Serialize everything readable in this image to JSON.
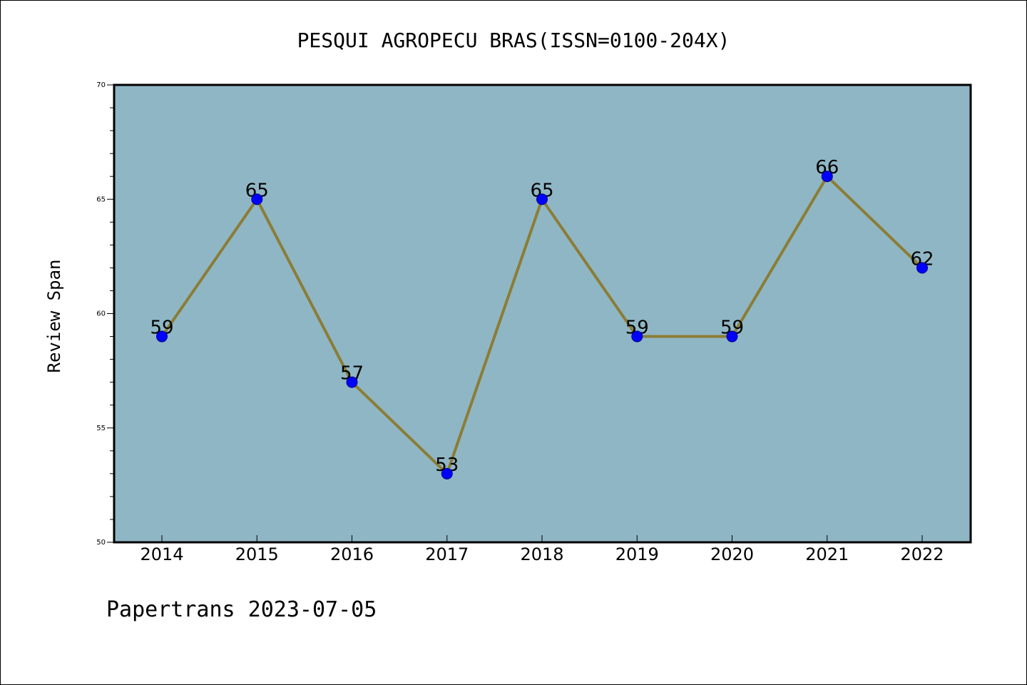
{
  "chart_data": {
    "type": "line",
    "title": "PESQUI AGROPECU BRAS(ISSN=0100-204X)",
    "xlabel": "",
    "ylabel": "Review Span",
    "categories": [
      "2014",
      "2015",
      "2016",
      "2017",
      "2018",
      "2019",
      "2020",
      "2021",
      "2022"
    ],
    "values": [
      59,
      65,
      57,
      53,
      65,
      59,
      59,
      66,
      62
    ],
    "data_labels": [
      "59",
      "65",
      "57",
      "53",
      "65",
      "59",
      "59",
      "66",
      "62"
    ],
    "ylim": [
      50,
      70
    ],
    "yticks": [
      50,
      55,
      60,
      65,
      70
    ],
    "ytick_labels": [
      "50",
      "55",
      "60",
      "65",
      "70"
    ],
    "grid": false,
    "colors": {
      "plot_background": "#8fb6c4",
      "line": "#8b7d36",
      "marker": "#0000ff",
      "marker_edge": "#00008b"
    }
  },
  "footer": "Papertrans 2023-07-05"
}
